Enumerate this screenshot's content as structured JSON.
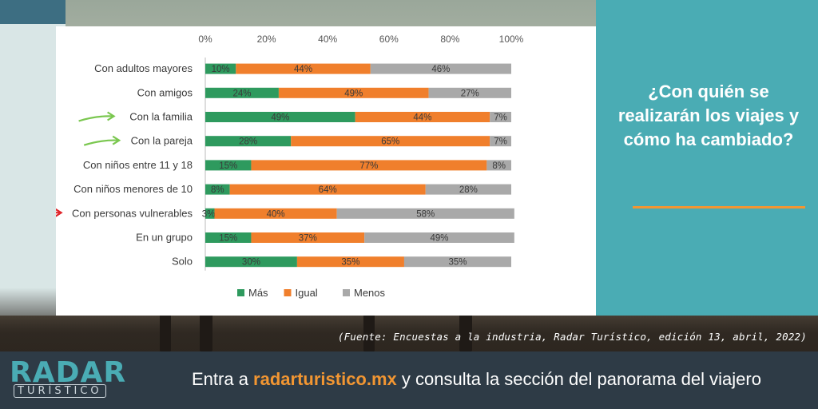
{
  "colors": {
    "mas": "#2e9a5e",
    "igual": "#f07f2c",
    "menos": "#a9a9a9",
    "accent": "#4aacb4",
    "orange": "#f29632"
  },
  "panel": {
    "title": "¿Con quién se realizarán los viajes y cómo ha cambiado?"
  },
  "source": "(Fuente: Encuestas a la industria, Radar Turístico, edición 13, abril, 2022)",
  "footer": {
    "prefix": "Entra a ",
    "link": "radarturistico.mx",
    "suffix": " y consulta la sección del panorama del viajero"
  },
  "logo": {
    "main": "RADAR",
    "sub": "TURÍSTICO"
  },
  "chart_data": {
    "type": "bar",
    "orientation": "horizontal",
    "stacked": "percent",
    "xlim": [
      0,
      100
    ],
    "ticks": [
      "0%",
      "20%",
      "40%",
      "60%",
      "80%",
      "100%"
    ],
    "legend_position": "bottom",
    "categories": [
      "Con adultos mayores",
      "Con amigos",
      "Con la familia",
      "Con la pareja",
      "Con niños entre 11 y 18",
      "Con niños menores de 10",
      "Con personas vulnerables",
      "En un grupo",
      "Solo"
    ],
    "series": [
      {
        "name": "Más",
        "values": [
          10,
          24,
          49,
          28,
          15,
          8,
          3,
          15,
          30
        ]
      },
      {
        "name": "Igual",
        "values": [
          44,
          49,
          44,
          65,
          77,
          64,
          40,
          37,
          35
        ]
      },
      {
        "name": "Menos",
        "values": [
          46,
          27,
          7,
          7,
          8,
          28,
          58,
          49,
          35
        ]
      }
    ],
    "annotations": [
      {
        "type": "arrow",
        "category": "Con la familia",
        "color": "#7ac74f"
      },
      {
        "type": "arrow",
        "category": "Con la pareja",
        "color": "#7ac74f"
      },
      {
        "type": "arrow",
        "category": "Con personas vulnerables",
        "color": "#e0262b"
      }
    ]
  }
}
